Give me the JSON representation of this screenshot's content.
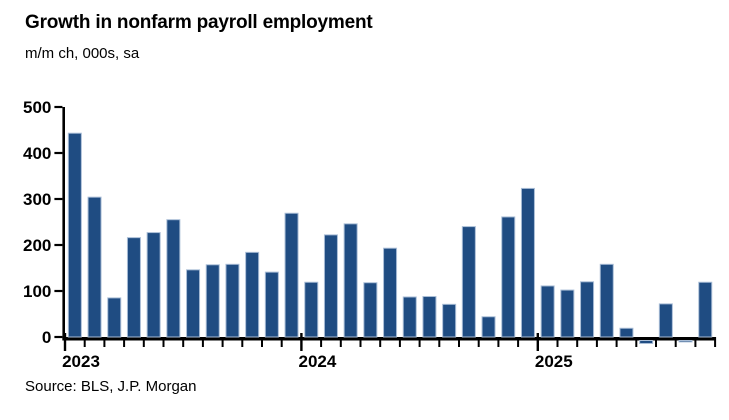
{
  "header": {
    "title": "Growth in nonfarm payroll employment",
    "subtitle": "m/m ch, 000s, sa"
  },
  "footer": {
    "source": "Source: BLS, J.P. Morgan"
  },
  "chart_data": {
    "type": "bar",
    "title": "Growth in nonfarm payroll employment",
    "subtitle": "m/m ch, 000s, sa",
    "source": "Source: BLS, J.P. Morgan",
    "categories": [
      "2023-01",
      "2023-02",
      "2023-03",
      "2023-04",
      "2023-05",
      "2023-06",
      "2023-07",
      "2023-08",
      "2023-09",
      "2023-10",
      "2023-11",
      "2023-12",
      "2024-01",
      "2024-02",
      "2024-03",
      "2024-04",
      "2024-05",
      "2024-06",
      "2024-07",
      "2024-08",
      "2024-09",
      "2024-10",
      "2024-11",
      "2024-12",
      "2025-01",
      "2025-02",
      "2025-03",
      "2025-04",
      "2025-05",
      "2025-06",
      "2025-07",
      "2025-08",
      "2025-09"
    ],
    "values": [
      443,
      304,
      85,
      216,
      227,
      255,
      146,
      157,
      158,
      184,
      141,
      269,
      119,
      222,
      246,
      118,
      193,
      87,
      88,
      71,
      240,
      44,
      261,
      323,
      111,
      102,
      120,
      158,
      19,
      -13,
      72,
      -4,
      119
    ],
    "y_ticks": [
      0,
      100,
      200,
      300,
      400,
      500
    ],
    "ylim": [
      -20,
      500
    ],
    "x_year_labels": [
      {
        "label": "2023",
        "slot": 0
      },
      {
        "label": "2024",
        "slot": 12
      },
      {
        "label": "2025",
        "slot": 24
      }
    ],
    "grid": false,
    "legend": false,
    "bar_color": "#1F4C82",
    "bar_border_color": "#A9BDD6",
    "axis_color": "#000000",
    "background_color": "#FFFFFF"
  }
}
